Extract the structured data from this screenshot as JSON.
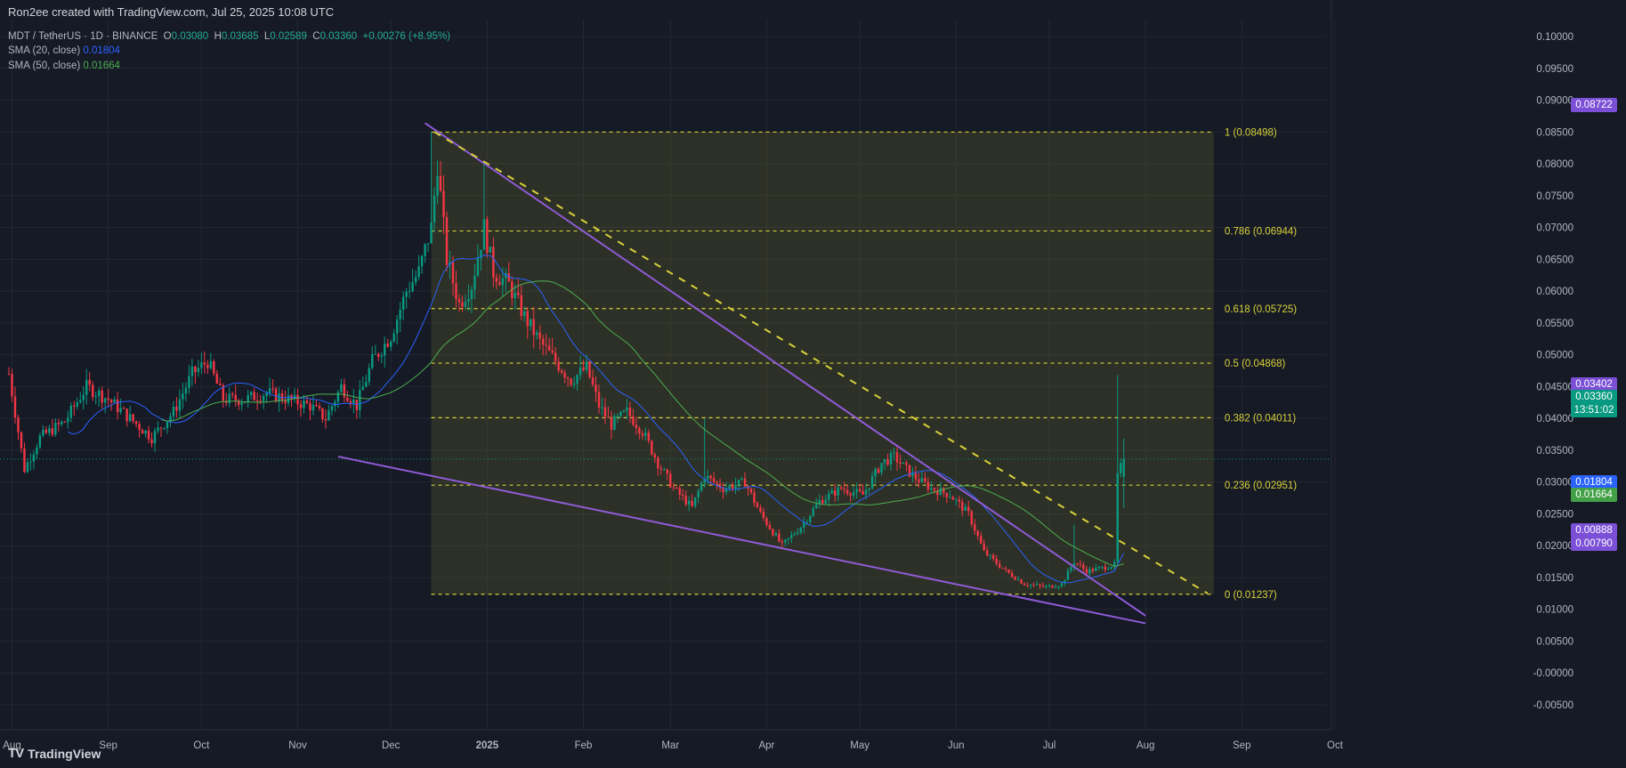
{
  "header": {
    "credit": "Ron2ee created with TradingView.com, Jul 25, 2025 10:08 UTC",
    "symbol": "MDT / TetherUS · 1D · BINANCE",
    "o_label": "O",
    "o_value": "0.03080",
    "h_label": "H",
    "h_value": "0.03685",
    "l_label": "L",
    "l_value": "0.02589",
    "c_label": "C",
    "c_value": "0.03360",
    "change": "+0.00276 (+8.95%)",
    "sma20_label": "SMA (20, close)",
    "sma20_value": "0.01804",
    "sma50_label": "SMA (50, close)",
    "sma50_value": "0.01664"
  },
  "brand": {
    "logo": "TV",
    "name": "TradingView"
  },
  "price_tags": [
    {
      "text": "0.08722",
      "color": "#7b4fd6"
    },
    {
      "text": "0.03402",
      "color": "#7b4fd6"
    },
    {
      "text": "0.03360",
      "color": "#089981"
    },
    {
      "text": "13:51:02",
      "color": "#089981"
    },
    {
      "text": "0.01804",
      "color": "#2962ff"
    },
    {
      "text": "0.01664",
      "color": "#43a047"
    },
    {
      "text": "0.00888",
      "color": "#7b4fd6"
    },
    {
      "text": "0.00790",
      "color": "#7b4fd6"
    }
  ],
  "chart_data": {
    "type": "candlestick",
    "title": "MDT / TetherUS · 1D · BINANCE",
    "x_ticks": [
      "Aug",
      "Sep",
      "Oct",
      "Nov",
      "Dec",
      "2025",
      "Feb",
      "Mar",
      "Apr",
      "May",
      "Jun",
      "Jul",
      "Aug",
      "Sep",
      "Oct"
    ],
    "x_range": [
      "2024-07-31",
      "2025-10-01"
    ],
    "ylim": [
      -0.0055,
      0.1005
    ],
    "y_ticks": [
      "0.10000",
      "0.09500",
      "0.09000",
      "0.08500",
      "0.08000",
      "0.07500",
      "0.07000",
      "0.06500",
      "0.06000",
      "0.05500",
      "0.05000",
      "0.04500",
      "0.04000",
      "0.03500",
      "0.03000",
      "0.02500",
      "0.02000",
      "0.01500",
      "0.01000",
      "0.00500",
      "-0.00000",
      "-0.00500"
    ],
    "grid": true,
    "close_path": [
      [
        "2024-07-31",
        0.047
      ],
      [
        "2024-08-05",
        0.032
      ],
      [
        "2024-08-10",
        0.037
      ],
      [
        "2024-08-18",
        0.0395
      ],
      [
        "2024-08-25",
        0.045
      ],
      [
        "2024-09-01",
        0.043
      ],
      [
        "2024-09-08",
        0.04
      ],
      [
        "2024-09-15",
        0.037
      ],
      [
        "2024-09-22",
        0.041
      ],
      [
        "2024-09-28",
        0.047
      ],
      [
        "2024-10-03",
        0.049
      ],
      [
        "2024-10-08",
        0.043
      ],
      [
        "2024-10-15",
        0.043
      ],
      [
        "2024-10-22",
        0.044
      ],
      [
        "2024-10-29",
        0.043
      ],
      [
        "2024-11-05",
        0.042
      ],
      [
        "2024-11-10",
        0.04
      ],
      [
        "2024-11-15",
        0.045
      ],
      [
        "2024-11-20",
        0.042
      ],
      [
        "2024-11-25",
        0.049
      ],
      [
        "2024-12-01",
        0.053
      ],
      [
        "2024-12-06",
        0.06
      ],
      [
        "2024-12-10",
        0.063
      ],
      [
        "2024-12-14",
        0.07
      ],
      [
        "2024-12-16",
        0.08
      ],
      [
        "2024-12-19",
        0.065
      ],
      [
        "2024-12-23",
        0.058
      ],
      [
        "2024-12-27",
        0.061
      ],
      [
        "2024-12-31",
        0.07
      ],
      [
        "2025-01-03",
        0.063
      ],
      [
        "2025-01-08",
        0.061
      ],
      [
        "2025-01-13",
        0.056
      ],
      [
        "2025-01-18",
        0.052
      ],
      [
        "2025-01-23",
        0.049
      ],
      [
        "2025-01-28",
        0.046
      ],
      [
        "2025-02-02",
        0.048
      ],
      [
        "2025-02-06",
        0.042
      ],
      [
        "2025-02-10",
        0.039
      ],
      [
        "2025-02-15",
        0.041
      ],
      [
        "2025-02-20",
        0.038
      ],
      [
        "2025-02-25",
        0.033
      ],
      [
        "2025-03-02",
        0.029
      ],
      [
        "2025-03-08",
        0.026
      ],
      [
        "2025-03-12",
        0.031
      ],
      [
        "2025-03-18",
        0.029
      ],
      [
        "2025-03-25",
        0.03
      ],
      [
        "2025-03-30",
        0.025
      ],
      [
        "2025-04-06",
        0.02
      ],
      [
        "2025-04-12",
        0.023
      ],
      [
        "2025-04-18",
        0.027
      ],
      [
        "2025-04-25",
        0.029
      ],
      [
        "2025-05-02",
        0.028
      ],
      [
        "2025-05-08",
        0.033
      ],
      [
        "2025-05-12",
        0.034
      ],
      [
        "2025-05-18",
        0.031
      ],
      [
        "2025-05-24",
        0.029
      ],
      [
        "2025-05-30",
        0.028
      ],
      [
        "2025-06-05",
        0.025
      ],
      [
        "2025-06-10",
        0.019
      ],
      [
        "2025-06-17",
        0.016
      ],
      [
        "2025-06-23",
        0.014
      ],
      [
        "2025-06-30",
        0.0135
      ],
      [
        "2025-07-05",
        0.014
      ],
      [
        "2025-07-09",
        0.0175
      ],
      [
        "2025-07-13",
        0.016
      ],
      [
        "2025-07-18",
        0.0165
      ],
      [
        "2025-07-22",
        0.017
      ],
      [
        "2025-07-23",
        0.031
      ],
      [
        "2025-07-25",
        0.0336
      ]
    ],
    "fibonacci": {
      "start_date": "2024-12-14",
      "end_date": "2025-08-23",
      "levels": [
        {
          "ratio": "1",
          "price": 0.08498,
          "label": "1 (0.08498)"
        },
        {
          "ratio": "0.786",
          "price": 0.06944,
          "label": "0.786 (0.06944)"
        },
        {
          "ratio": "0.618",
          "price": 0.05725,
          "label": "0.618 (0.05725)"
        },
        {
          "ratio": "0.5",
          "price": 0.04868,
          "label": "0.5 (0.04868)"
        },
        {
          "ratio": "0.382",
          "price": 0.04011,
          "label": "0.382 (0.04011)"
        },
        {
          "ratio": "0.236",
          "price": 0.02951,
          "label": "0.236 (0.02951)"
        },
        {
          "ratio": "0",
          "price": 0.01237,
          "label": "0 (0.01237)"
        }
      ]
    },
    "trendlines": [
      {
        "name": "upper",
        "color": "#8e5bd6",
        "from": [
          "2024-12-12",
          0.0864
        ],
        "to": [
          "2025-08-01",
          0.009
        ]
      },
      {
        "name": "lower",
        "color": "#8e5bd6",
        "from": [
          "2024-11-14",
          0.034
        ],
        "to": [
          "2025-08-01",
          0.0078
        ]
      },
      {
        "name": "dashed",
        "color": "#d7d13a",
        "from": [
          "2024-12-15",
          0.085
        ],
        "to": [
          "2025-08-21",
          0.0125
        ]
      }
    ],
    "current_price": 0.0336
  }
}
